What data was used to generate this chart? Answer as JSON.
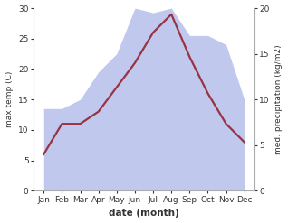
{
  "months": [
    "Jan",
    "Feb",
    "Mar",
    "Apr",
    "May",
    "Jun",
    "Jul",
    "Aug",
    "Sep",
    "Oct",
    "Nov",
    "Dec"
  ],
  "max_temp": [
    6,
    11,
    11,
    13,
    17,
    21,
    26,
    29,
    22,
    16,
    11,
    8
  ],
  "precipitation": [
    9,
    9,
    10,
    13,
    15,
    20,
    19.5,
    20,
    17,
    17,
    16,
    10
  ],
  "temp_color": "#993344",
  "precip_fill_color": "#c0c8ee",
  "temp_ylim": [
    0,
    30
  ],
  "precip_ylim": [
    0,
    20
  ],
  "precip_yticks": [
    0,
    5,
    10,
    15,
    20
  ],
  "temp_yticks": [
    0,
    5,
    10,
    15,
    20,
    25,
    30
  ],
  "xlabel": "date (month)",
  "ylabel_left": "max temp (C)",
  "ylabel_right": "med. precipitation (kg/m2)",
  "temp_linewidth": 1.6,
  "background_color": "#ffffff"
}
